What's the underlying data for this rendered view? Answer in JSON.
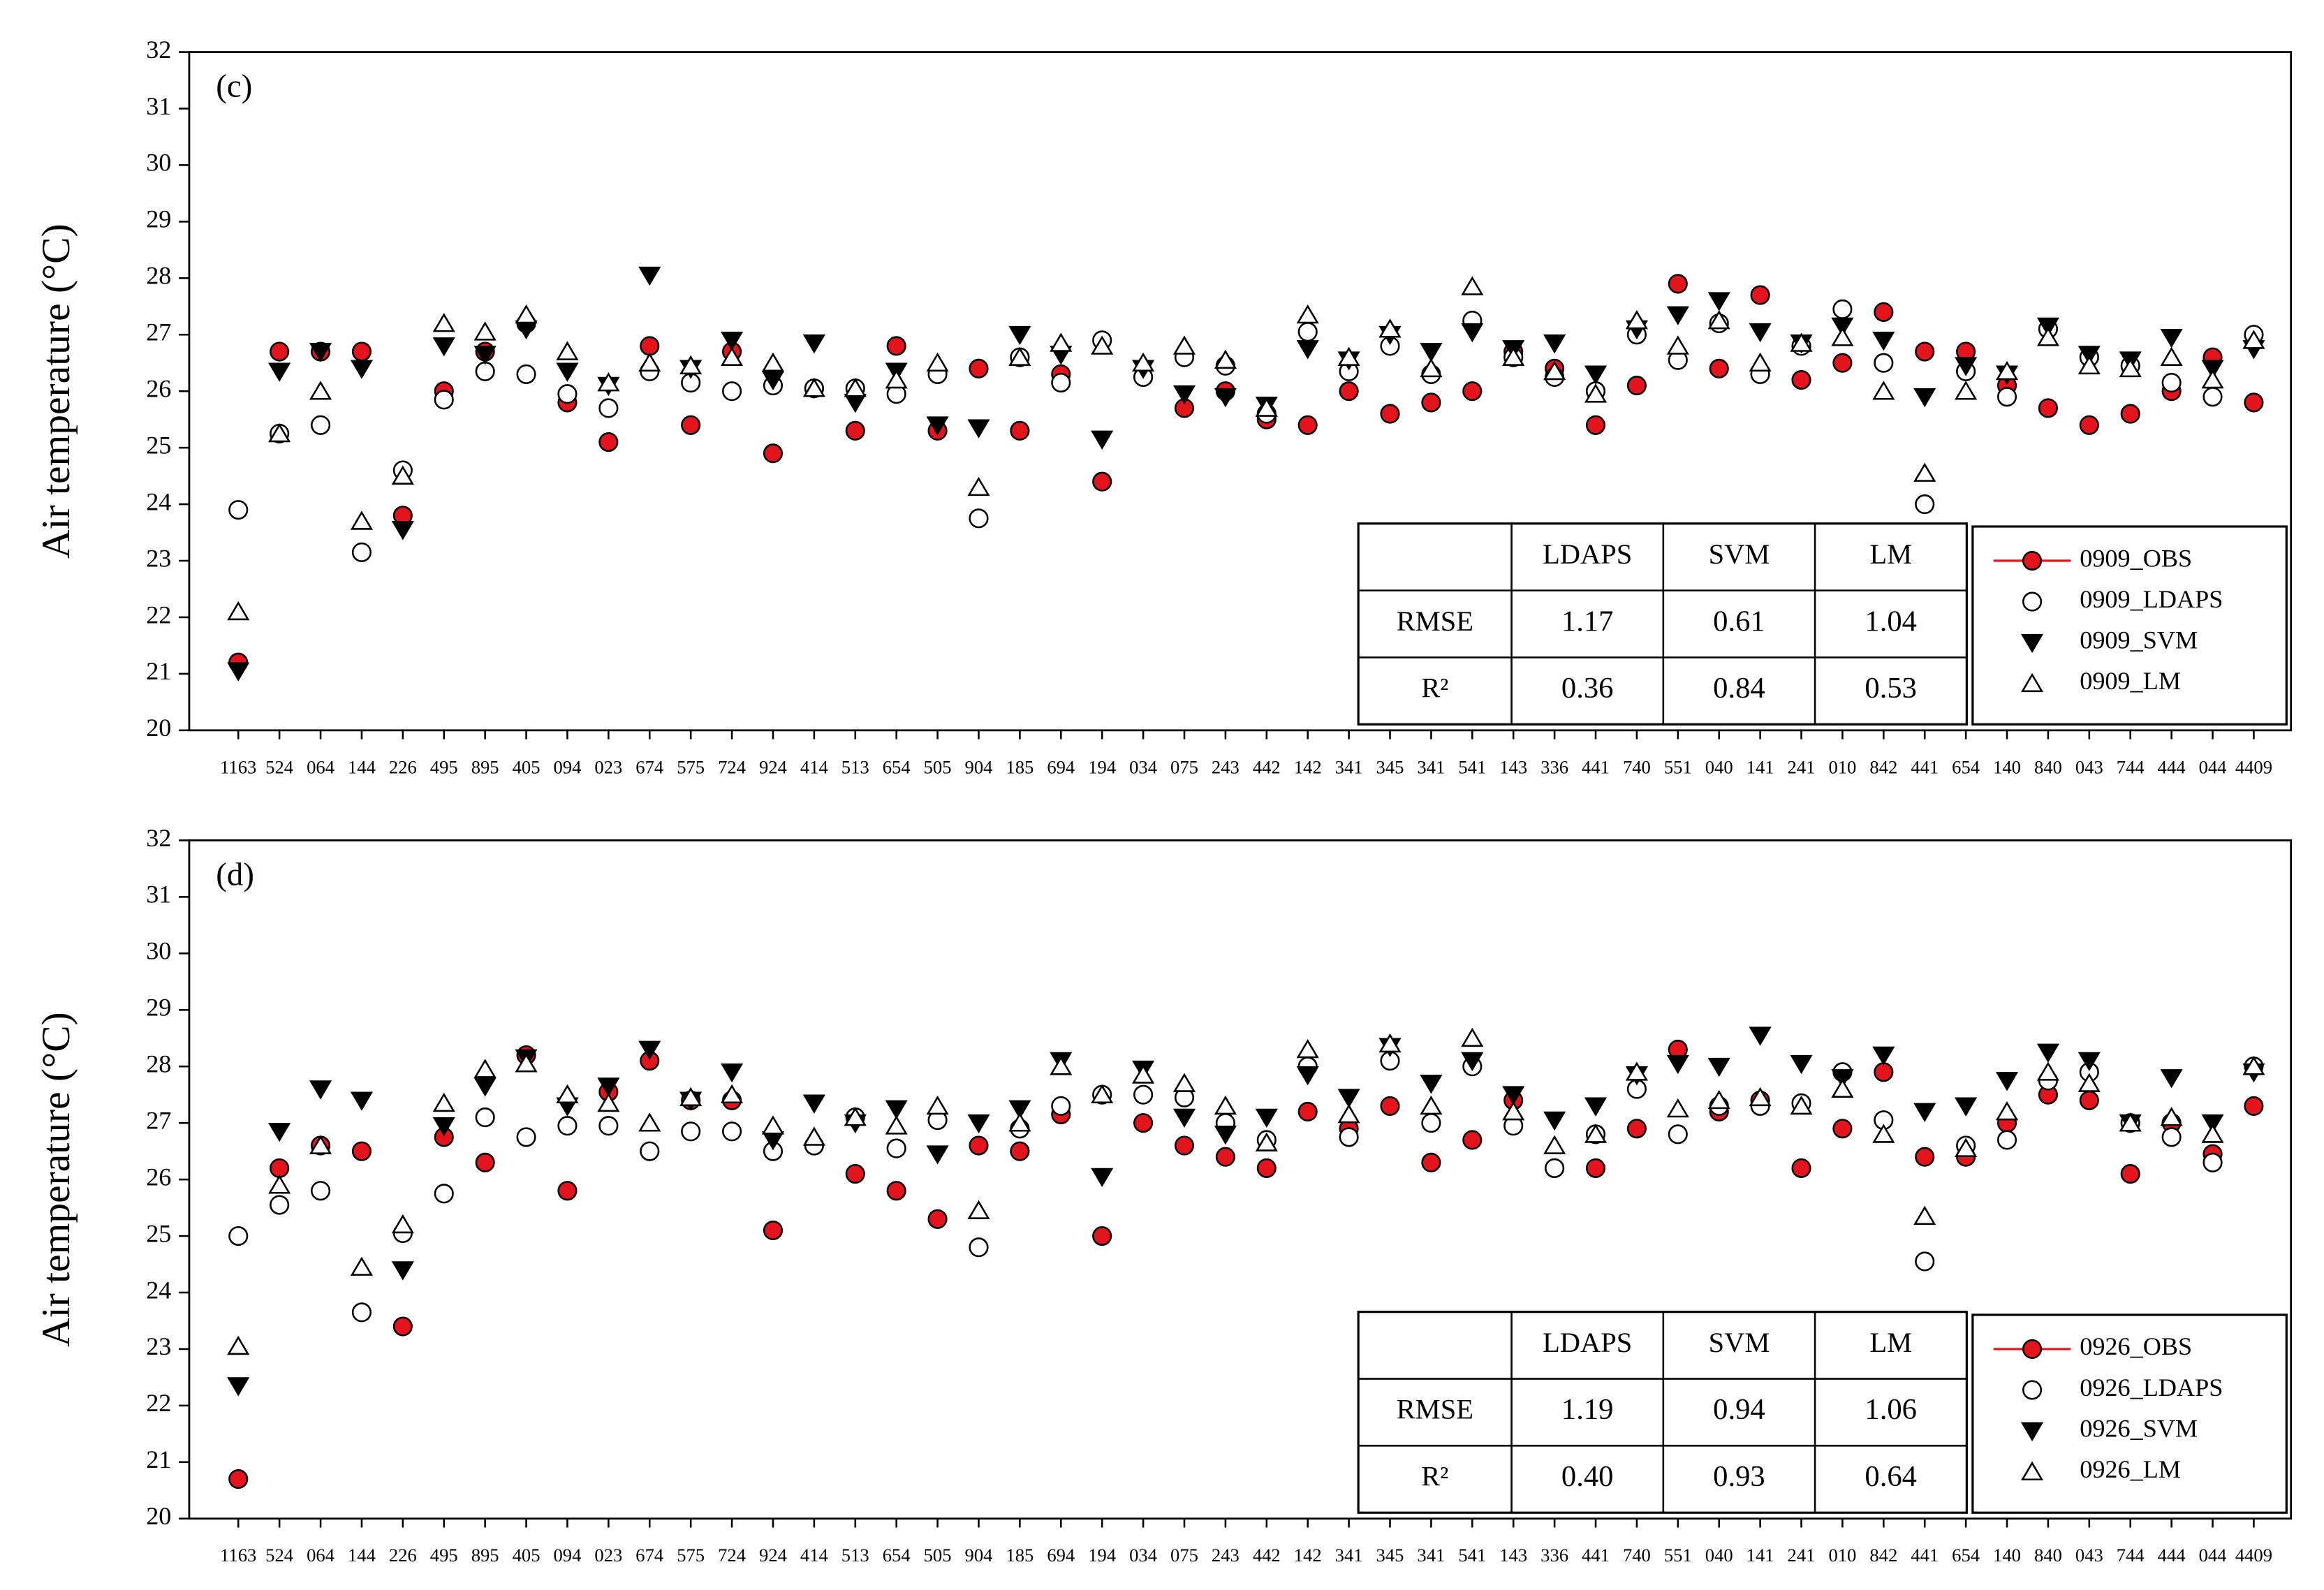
{
  "chart_data": [
    {
      "type": "scatter",
      "panel_label": "(c)",
      "ylabel": "Air temperature (°C)",
      "categories": [
        "1163",
        "524",
        "064",
        "144",
        "226",
        "495",
        "895",
        "405",
        "094",
        "023",
        "674",
        "575",
        "724",
        "924",
        "414",
        "513",
        "654",
        "505",
        "904",
        "185",
        "694",
        "194",
        "034",
        "075",
        "243",
        "442",
        "142",
        "341",
        "345",
        "341",
        "541",
        "143",
        "336",
        "441",
        "740",
        "551",
        "040",
        "141",
        "241",
        "010",
        "842",
        "441",
        "654",
        "140",
        "840",
        "043",
        "744",
        "444",
        "044",
        "4409"
      ],
      "ylim": [
        20,
        32
      ],
      "yticks": [
        20,
        21,
        22,
        23,
        24,
        25,
        26,
        27,
        28,
        29,
        30,
        31,
        32
      ],
      "legend": "lower right",
      "series": [
        {
          "name": "0909_OBS",
          "marker": "circle",
          "color": "#e3141b",
          "values": [
            21.2,
            26.7,
            26.7,
            26.7,
            23.8,
            26.0,
            26.7,
            27.2,
            25.8,
            25.1,
            26.8,
            25.4,
            26.7,
            24.9,
            26.05,
            25.3,
            26.8,
            25.3,
            26.4,
            25.3,
            26.3,
            24.4,
            26.25,
            25.7,
            26.0,
            25.5,
            25.4,
            26.0,
            25.6,
            25.8,
            26.0,
            26.7,
            26.4,
            25.4,
            26.1,
            27.9,
            26.4,
            27.7,
            26.2,
            26.5,
            27.4,
            26.7,
            26.7,
            26.1,
            25.7,
            25.4,
            25.6,
            26.0,
            26.6,
            25.8
          ]
        },
        {
          "name": "0909_LDAPS",
          "marker": "circle",
          "color": "#ffffff",
          "values": [
            23.9,
            25.25,
            25.4,
            23.15,
            24.6,
            25.85,
            26.35,
            26.3,
            25.95,
            25.7,
            26.35,
            26.15,
            26.0,
            26.1,
            26.05,
            26.05,
            25.95,
            26.3,
            23.75,
            26.6,
            26.15,
            26.9,
            26.25,
            26.6,
            26.45,
            25.6,
            27.05,
            26.35,
            26.8,
            26.3,
            27.25,
            26.6,
            26.25,
            26.0,
            27.0,
            26.55,
            27.2,
            26.3,
            26.8,
            27.45,
            26.5,
            24.0,
            26.35,
            25.9,
            27.1,
            26.6,
            26.45,
            26.15,
            25.9,
            27.0
          ]
        },
        {
          "name": "0909_SVM",
          "marker": "triangle-down",
          "color": "#000000",
          "values": [
            21.05,
            26.35,
            26.7,
            26.4,
            23.55,
            26.8,
            26.65,
            27.1,
            26.35,
            26.1,
            28.05,
            26.4,
            26.9,
            26.2,
            26.85,
            25.8,
            26.35,
            25.4,
            25.35,
            27.0,
            26.65,
            25.15,
            26.4,
            25.95,
            25.9,
            25.75,
            26.75,
            26.55,
            27.0,
            26.7,
            27.05,
            26.75,
            26.85,
            26.3,
            27.1,
            27.35,
            27.6,
            27.05,
            26.85,
            27.15,
            26.9,
            25.9,
            26.45,
            26.3,
            27.15,
            26.65,
            26.55,
            26.95,
            26.4,
            26.75
          ]
        },
        {
          "name": "0909_LM",
          "marker": "triangle-up",
          "color": "#ffffff",
          "values": [
            22.1,
            25.25,
            26.0,
            23.7,
            24.5,
            27.2,
            27.05,
            27.35,
            26.7,
            26.15,
            26.5,
            26.45,
            26.6,
            26.5,
            26.05,
            26.05,
            26.2,
            26.5,
            24.3,
            26.6,
            26.85,
            26.8,
            26.5,
            26.8,
            26.55,
            25.7,
            27.35,
            26.6,
            27.1,
            26.4,
            27.85,
            26.6,
            26.35,
            25.95,
            27.25,
            26.8,
            27.25,
            26.5,
            26.85,
            26.95,
            26.0,
            24.55,
            26.0,
            26.35,
            26.95,
            26.45,
            26.4,
            26.6,
            26.2,
            26.9
          ]
        }
      ],
      "table": {
        "columns": [
          "LDAPS",
          "SVM",
          "LM"
        ],
        "rows": [
          {
            "label": "RMSE",
            "values": [
              "1.17",
              "0.61",
              "1.04"
            ]
          },
          {
            "label": "R²",
            "values": [
              "0.36",
              "0.84",
              "0.53"
            ]
          }
        ]
      }
    },
    {
      "type": "scatter",
      "panel_label": "(d)",
      "ylabel": "Air temperature (°C)",
      "categories": [
        "1163",
        "524",
        "064",
        "144",
        "226",
        "495",
        "895",
        "405",
        "094",
        "023",
        "674",
        "575",
        "724",
        "924",
        "414",
        "513",
        "654",
        "505",
        "904",
        "185",
        "694",
        "194",
        "034",
        "075",
        "243",
        "442",
        "142",
        "341",
        "345",
        "341",
        "541",
        "143",
        "336",
        "441",
        "740",
        "551",
        "040",
        "141",
        "241",
        "010",
        "842",
        "441",
        "654",
        "140",
        "840",
        "043",
        "744",
        "444",
        "044",
        "4409"
      ],
      "ylim": [
        20,
        32
      ],
      "yticks": [
        20,
        21,
        22,
        23,
        24,
        25,
        26,
        27,
        28,
        29,
        30,
        31,
        32
      ],
      "legend": "lower right",
      "series": [
        {
          "name": "0926_OBS",
          "marker": "circle",
          "color": "#e3141b",
          "values": [
            20.7,
            26.2,
            26.6,
            26.5,
            23.4,
            26.75,
            26.3,
            28.2,
            25.8,
            27.55,
            28.1,
            27.4,
            27.4,
            25.1,
            26.6,
            26.1,
            25.8,
            25.3,
            26.6,
            26.5,
            27.15,
            25.0,
            27.0,
            26.6,
            26.4,
            26.2,
            27.2,
            26.9,
            27.3,
            26.3,
            26.7,
            27.4,
            26.2,
            26.2,
            26.9,
            28.3,
            27.2,
            27.4,
            26.2,
            26.9,
            27.9,
            26.4,
            26.4,
            27.0,
            27.5,
            27.4,
            26.1,
            27.0,
            26.45,
            27.3
          ]
        },
        {
          "name": "0926_LDAPS",
          "marker": "circle",
          "color": "#ffffff",
          "values": [
            25.0,
            25.55,
            25.8,
            23.65,
            25.05,
            25.75,
            27.1,
            26.75,
            26.95,
            26.95,
            26.5,
            26.85,
            26.85,
            26.5,
            26.6,
            27.1,
            26.55,
            27.05,
            24.8,
            26.9,
            27.3,
            27.5,
            27.5,
            27.45,
            27.0,
            26.7,
            28.0,
            26.75,
            28.1,
            27.0,
            28.0,
            26.95,
            26.2,
            26.8,
            27.6,
            26.8,
            27.3,
            27.3,
            27.35,
            27.9,
            27.05,
            24.55,
            26.6,
            26.7,
            27.75,
            27.9,
            27.0,
            26.75,
            26.3,
            28.0
          ]
        },
        {
          "name": "0926_SVM",
          "marker": "triangle-down",
          "color": "#000000",
          "values": [
            22.35,
            26.85,
            27.6,
            27.4,
            24.4,
            26.95,
            27.65,
            28.15,
            27.3,
            27.65,
            28.3,
            27.4,
            27.9,
            26.7,
            27.35,
            27.0,
            27.25,
            26.45,
            27.0,
            27.25,
            28.1,
            26.05,
            27.95,
            27.1,
            26.8,
            27.1,
            27.85,
            27.45,
            28.35,
            27.7,
            28.1,
            27.5,
            27.05,
            27.3,
            27.85,
            28.05,
            28.0,
            28.55,
            28.05,
            27.8,
            28.2,
            27.2,
            27.3,
            27.75,
            28.25,
            28.1,
            27.0,
            27.8,
            27.0,
            27.9
          ]
        },
        {
          "name": "0926_LM",
          "marker": "triangle-up",
          "color": "#ffffff",
          "values": [
            23.05,
            25.9,
            26.6,
            24.45,
            25.2,
            27.35,
            27.95,
            28.05,
            27.5,
            27.35,
            27.0,
            27.45,
            27.5,
            26.95,
            26.75,
            27.1,
            26.95,
            27.3,
            25.45,
            27.0,
            28.0,
            27.5,
            27.85,
            27.7,
            27.3,
            26.65,
            28.3,
            27.15,
            28.4,
            27.3,
            28.5,
            27.2,
            26.6,
            26.8,
            27.9,
            27.25,
            27.4,
            27.45,
            27.3,
            27.6,
            26.8,
            25.35,
            26.55,
            27.2,
            27.9,
            27.7,
            27.0,
            27.1,
            26.8,
            28.0
          ]
        }
      ],
      "table": {
        "columns": [
          "LDAPS",
          "SVM",
          "LM"
        ],
        "rows": [
          {
            "label": "RMSE",
            "values": [
              "1.19",
              "0.94",
              "1.06"
            ]
          },
          {
            "label": "R²",
            "values": [
              "0.40",
              "0.93",
              "0.64"
            ]
          }
        ]
      }
    }
  ]
}
